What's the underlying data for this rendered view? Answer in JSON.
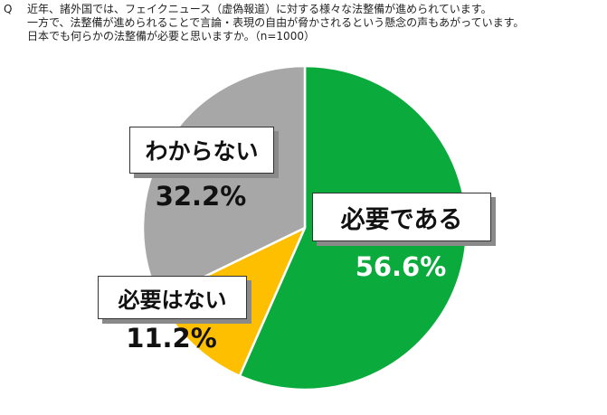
{
  "question": {
    "marker": "Q",
    "lines": [
      "近年、諸外国では、フェイクニュース（虚偽報道）に対する様々な法整備が進められています。",
      "一方で、法整備が進められることで言論・表現の自由が脅かされるという懸念の声もあがっています。",
      "日本でも何らかの法整備が必要と思いますか。（n=1000）"
    ]
  },
  "chart_data": {
    "type": "pie",
    "title": "",
    "start": "12 o'clock",
    "direction": "clockwise",
    "slices": [
      {
        "label": "必要である",
        "value": 56.6,
        "display": "56.6%",
        "color": "#0aab3c"
      },
      {
        "label": "必要はない",
        "value": 11.2,
        "display": "11.2%",
        "color": "#fdbf00"
      },
      {
        "label": "わからない",
        "value": 32.2,
        "display": "32.2%",
        "color": "#a7a7a7"
      }
    ]
  }
}
